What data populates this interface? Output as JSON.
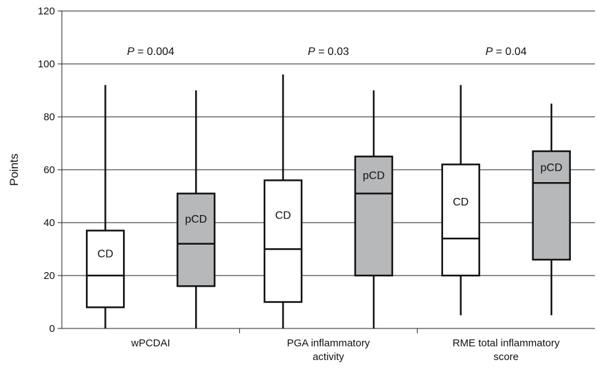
{
  "chart_data": {
    "type": "boxplot",
    "title": "",
    "xlabel": "",
    "ylabel": "Points",
    "ylim": [
      0,
      120
    ],
    "yticks": [
      0,
      20,
      40,
      60,
      80,
      100,
      120
    ],
    "grid": "horizontal",
    "colors": {
      "CD": "#ffffff",
      "pCD": "#b7b8ba",
      "line": "#111111"
    },
    "groups": [
      {
        "category": [
          "wPCDAI"
        ],
        "p_value": "0.004",
        "boxes": [
          {
            "label": "CD",
            "min": 0,
            "q1": 8,
            "median": 20,
            "q3": 37,
            "max": 92
          },
          {
            "label": "pCD",
            "min": 0,
            "q1": 16,
            "median": 32,
            "q3": 51,
            "max": 90
          }
        ]
      },
      {
        "category": [
          "PGA inflammatory",
          "activity"
        ],
        "p_value": "0.03",
        "boxes": [
          {
            "label": "CD",
            "min": 0,
            "q1": 10,
            "median": 30,
            "q3": 56,
            "max": 96
          },
          {
            "label": "pCD",
            "min": 0,
            "q1": 20,
            "median": 51,
            "q3": 65,
            "max": 90
          }
        ]
      },
      {
        "category": [
          "RME total inflammatory",
          "score"
        ],
        "p_value": "0.04",
        "boxes": [
          {
            "label": "CD",
            "min": 5,
            "q1": 20,
            "median": 34,
            "q3": 62,
            "max": 92
          },
          {
            "label": "pCD",
            "min": 5,
            "q1": 26,
            "median": 55,
            "q3": 67,
            "max": 85
          }
        ]
      }
    ]
  }
}
